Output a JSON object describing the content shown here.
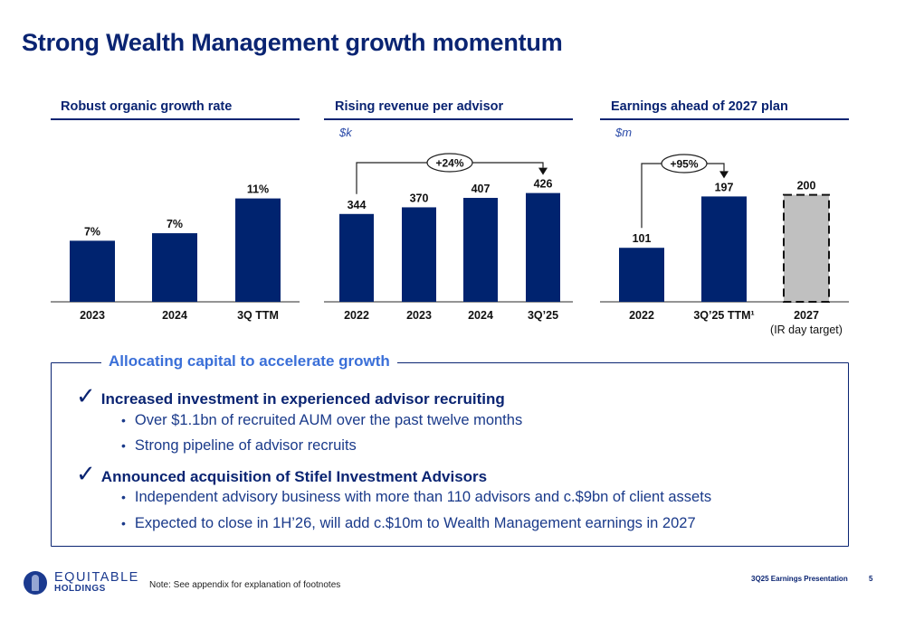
{
  "page": {
    "title": "Strong Wealth Management growth momentum"
  },
  "chart_data": [
    {
      "type": "bar",
      "title": "Robust organic growth rate",
      "unit_label": "",
      "categories": [
        "2023",
        "2024",
        "3Q TTM"
      ],
      "values": [
        6.5,
        7.3,
        11
      ],
      "data_labels": [
        "7%",
        "7%",
        "11%"
      ],
      "ylim": [
        0,
        12.5
      ],
      "grid": false,
      "colors": [
        "#00236f",
        "#00236f",
        "#00236f"
      ]
    },
    {
      "type": "bar",
      "title": "Rising revenue per advisor",
      "unit_label": "$k",
      "categories": [
        "2022",
        "2023",
        "2024",
        "3Q’25"
      ],
      "values": [
        344,
        370,
        407,
        426
      ],
      "data_labels": [
        "344",
        "370",
        "407",
        "426"
      ],
      "ylim": [
        0,
        460
      ],
      "grid": false,
      "colors": [
        "#00236f",
        "#00236f",
        "#00236f",
        "#00236f"
      ],
      "annotation": {
        "label": "+24%",
        "from": "2022",
        "to": "3Q’25"
      }
    },
    {
      "type": "bar",
      "title": "Earnings ahead of 2027 plan",
      "unit_label": "$m",
      "categories": [
        "2022",
        "3Q’25 TTM¹",
        "2027"
      ],
      "category_sublabels": [
        "",
        "",
        "(IR day target)"
      ],
      "values": [
        101,
        197,
        200
      ],
      "data_labels": [
        "101",
        "197",
        "200"
      ],
      "ylim": [
        0,
        196
      ],
      "grid": false,
      "colors": [
        "#00236f",
        "#00236f",
        "#c0c0c0"
      ],
      "target_index": 2,
      "annotation": {
        "label": "+95%",
        "from": "2022",
        "to": "3Q’25 TTM¹"
      }
    }
  ],
  "box": {
    "title": "Allocating capital to accelerate growth",
    "items": [
      {
        "heading": "Increased investment in experienced advisor recruiting",
        "bullets": [
          "Over $1.1bn of recruited AUM over the past twelve months",
          "Strong pipeline of advisor recruits"
        ]
      },
      {
        "heading": "Announced acquisition of Stifel Investment Advisors",
        "bullets": [
          "Independent advisory business with more than 110 advisors and c.$9bn of client assets",
          "Expected to close in 1H’26, will add c.$10m to Wealth Management earnings in 2027"
        ]
      }
    ],
    "check_glyph": "✓",
    "bullet_glyph": "•"
  },
  "footer": {
    "logo_main": "EQUITABLE",
    "logo_sub": "HOLDINGS",
    "note": "Note: See appendix for explanation of footnotes",
    "presentation": "3Q25 Earnings Presentation",
    "page_number": "5"
  }
}
